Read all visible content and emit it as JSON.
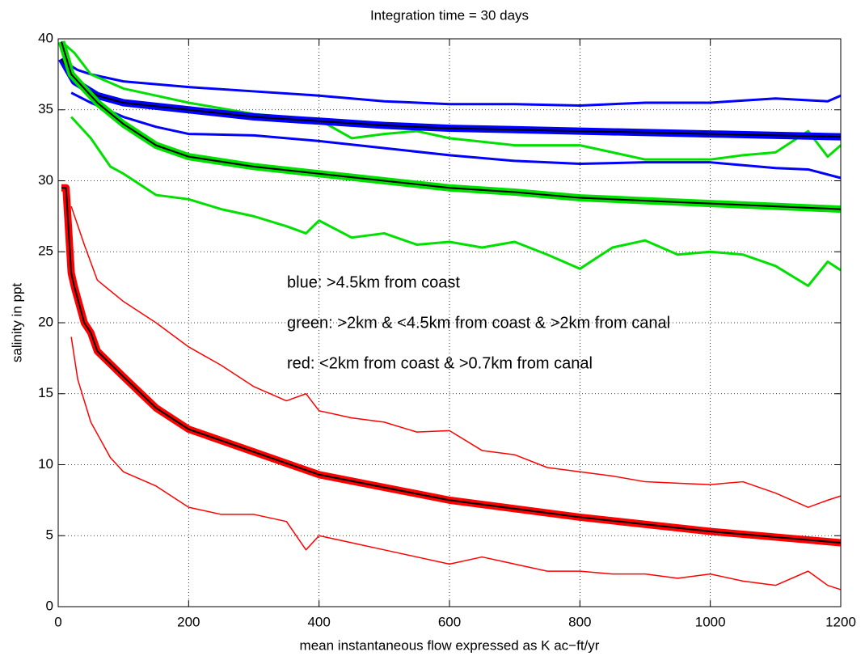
{
  "chart_data": {
    "type": "line",
    "title": "Integration time = 30 days",
    "xlabel": "mean instantaneous flow expressed as K ac−ft/yr",
    "ylabel": "salinity in ppt",
    "annotations": [
      "blue:  >4.5km from coast",
      "green: >2km & <4.5km from coast & >2km from canal",
      "red:   <2km from coast & >0.7km from canal"
    ],
    "xlim": [
      0,
      1200
    ],
    "ylim": [
      0,
      40
    ],
    "xticks": [
      0,
      200,
      400,
      600,
      800,
      1000,
      1200
    ],
    "yticks": [
      0,
      5,
      10,
      15,
      20,
      25,
      30,
      35,
      40
    ],
    "grid": true,
    "series": [
      {
        "color": "#0000ff",
        "linewidth": 3,
        "x": [
          5,
          30,
          50,
          100,
          150,
          200,
          300,
          400,
          500,
          600,
          700,
          800,
          900,
          1000,
          1100,
          1180,
          1200
        ],
        "values": [
          38.5,
          37.8,
          37.5,
          37,
          36.8,
          36.6,
          36.3,
          36,
          35.6,
          35.4,
          35.4,
          35.3,
          35.5,
          35.5,
          35.8,
          35.6,
          36
        ]
      },
      {
        "color": "#0000ff",
        "linewidth": 3,
        "x": [
          20,
          50,
          100,
          150,
          200,
          300,
          400,
          500,
          600,
          700,
          800,
          900,
          1000,
          1100,
          1150,
          1200
        ],
        "values": [
          36.2,
          35.5,
          34.5,
          33.8,
          33.3,
          33.2,
          32.8,
          32.3,
          31.8,
          31.4,
          31.2,
          31.3,
          31.3,
          30.9,
          30.8,
          30.2
        ]
      },
      {
        "color": "#00e000",
        "linewidth": 3,
        "x": [
          5,
          25,
          50,
          100,
          200,
          300,
          400,
          450,
          500,
          550,
          600,
          700,
          800,
          850,
          900,
          1000,
          1050,
          1100,
          1150,
          1180,
          1200
        ],
        "values": [
          39.8,
          39,
          37.5,
          36.5,
          35.5,
          34.7,
          34.3,
          33,
          33.3,
          33.5,
          33,
          32.5,
          32.5,
          32,
          31.5,
          31.5,
          31.8,
          32,
          33.5,
          31.7,
          32.5
        ]
      },
      {
        "color": "#00e000",
        "linewidth": 3,
        "x": [
          20,
          50,
          80,
          100,
          150,
          200,
          250,
          300,
          350,
          380,
          400,
          450,
          500,
          550,
          600,
          650,
          700,
          750,
          800,
          850,
          900,
          950,
          1000,
          1050,
          1100,
          1150,
          1180,
          1200
        ],
        "values": [
          34.5,
          33,
          31,
          30.5,
          29,
          28.7,
          28,
          27.5,
          26.8,
          26.3,
          27.2,
          26,
          26.3,
          25.5,
          25.7,
          25.3,
          25.7,
          24.8,
          23.8,
          25.3,
          25.8,
          24.8,
          25,
          24.8,
          24,
          22.6,
          24.3,
          23.7
        ]
      },
      {
        "color": "#ff0000",
        "linewidth": 1.5,
        "x": [
          20,
          40,
          60,
          100,
          150,
          200,
          250,
          300,
          350,
          380,
          400,
          450,
          500,
          550,
          600,
          650,
          700,
          750,
          800,
          850,
          900,
          950,
          1000,
          1050,
          1100,
          1150,
          1180,
          1200
        ],
        "values": [
          28.2,
          25.5,
          23,
          21.5,
          20,
          18.3,
          17,
          15.5,
          14.5,
          15,
          13.8,
          13.3,
          13,
          12.3,
          12.4,
          11,
          10.7,
          9.8,
          9.5,
          9.2,
          8.8,
          8.7,
          8.6,
          8.8,
          8,
          7,
          7.5,
          7.8
        ]
      },
      {
        "color": "#ff0000",
        "linewidth": 1.5,
        "x": [
          20,
          30,
          50,
          80,
          100,
          150,
          200,
          250,
          300,
          350,
          380,
          400,
          450,
          500,
          550,
          600,
          650,
          700,
          750,
          800,
          850,
          900,
          950,
          1000,
          1050,
          1100,
          1150,
          1180,
          1200
        ],
        "values": [
          19,
          16,
          13,
          10.5,
          9.5,
          8.5,
          7,
          6.5,
          6.5,
          6,
          4,
          5,
          4.5,
          4,
          3.5,
          3,
          3.5,
          3,
          2.5,
          2.5,
          2.3,
          2.3,
          2,
          2.3,
          1.8,
          1.5,
          2.5,
          1.5,
          1.2
        ]
      },
      {
        "color": "#0000ff",
        "linewidth": 9,
        "x": [
          5,
          25,
          60,
          100,
          200,
          300,
          400,
          500,
          600,
          800,
          1000,
          1200
        ],
        "values": [
          38.6,
          37,
          36,
          35.5,
          35,
          34.5,
          34.2,
          33.9,
          33.7,
          33.5,
          33.3,
          33.1
        ]
      },
      {
        "color": "#000000",
        "linewidth": 2,
        "x": [
          5,
          25,
          60,
          100,
          200,
          300,
          400,
          500,
          600,
          800,
          1000,
          1200
        ],
        "values": [
          38.6,
          37,
          36,
          35.5,
          35,
          34.5,
          34.2,
          33.9,
          33.7,
          33.5,
          33.3,
          33.1
        ]
      },
      {
        "color": "#00e000",
        "linewidth": 9,
        "x": [
          5,
          20,
          60,
          100,
          150,
          200,
          300,
          400,
          500,
          600,
          700,
          800,
          900,
          1000,
          1100,
          1200
        ],
        "values": [
          39.8,
          37.5,
          35.5,
          34,
          32.5,
          31.7,
          31,
          30.5,
          30,
          29.5,
          29.2,
          28.8,
          28.6,
          28.4,
          28.2,
          28
        ]
      },
      {
        "color": "#000000",
        "linewidth": 2,
        "x": [
          5,
          20,
          60,
          100,
          150,
          200,
          300,
          400,
          500,
          600,
          700,
          800,
          900,
          1000,
          1100,
          1200
        ],
        "values": [
          39.8,
          37.5,
          35.5,
          34,
          32.5,
          31.7,
          31,
          30.5,
          30,
          29.5,
          29.2,
          28.8,
          28.6,
          28.4,
          28.2,
          28
        ]
      },
      {
        "color": "#ff0000",
        "linewidth": 9,
        "x": [
          5,
          12,
          20,
          25,
          40,
          50,
          60,
          100,
          150,
          200,
          400,
          600,
          800,
          1000,
          1200
        ],
        "values": [
          29.5,
          29.5,
          23.5,
          22.5,
          20,
          19.3,
          18,
          16.2,
          14,
          12.5,
          9.3,
          7.5,
          6.3,
          5.3,
          4.5
        ]
      },
      {
        "color": "#000000",
        "linewidth": 2,
        "x": [
          5,
          12,
          20,
          25,
          40,
          50,
          60,
          100,
          150,
          200,
          400,
          600,
          800,
          1000,
          1200
        ],
        "values": [
          29.5,
          29.5,
          23.5,
          22.5,
          20,
          19.3,
          18,
          16.2,
          14,
          12.5,
          9.3,
          7.5,
          6.3,
          5.3,
          4.5
        ]
      }
    ]
  }
}
